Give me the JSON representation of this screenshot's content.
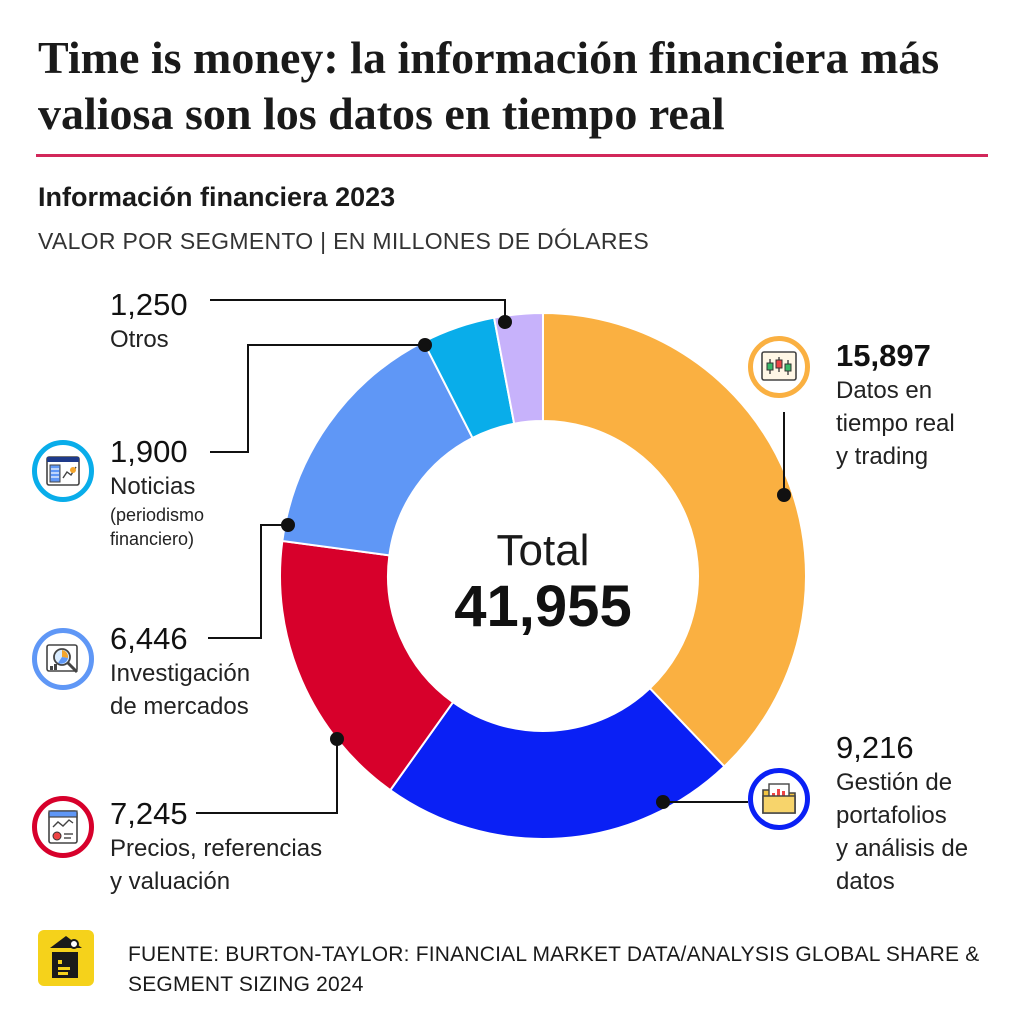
{
  "header": {
    "headline": "Time is money: la información financiera más valiosa son los datos en tiempo real",
    "accent_color": "#d2275a"
  },
  "chart_data": {
    "type": "pie",
    "title": "Información financiera 2023",
    "subtitle": "VALOR POR SEGMENTO | EN MILLONES DE DÓLARES",
    "center_label": "Total",
    "center_value": "41,955",
    "categories": [
      "Datos en tiempo real y trading",
      "Gestión de portafolios y análisis de datos",
      "Precios, referencias y valuación",
      "Investigación de mercados",
      "Noticias (periodismo financiero)",
      "Otros"
    ],
    "values": [
      15897,
      9216,
      7245,
      6446,
      1900,
      1250
    ],
    "colors": [
      "#fab041",
      "#0a20f5",
      "#d7002b",
      "#5f97f6",
      "#09adea",
      "#c7b2fb"
    ],
    "labels": [
      {
        "value": "15,897",
        "lines": [
          "Datos en",
          "tiempo real",
          "y trading"
        ],
        "note": [],
        "icon": "trading-chart-icon"
      },
      {
        "value": "9,216",
        "lines": [
          "Gestión de",
          "portafolios",
          "y análisis de",
          "datos"
        ],
        "note": [],
        "icon": "portfolio-folder-icon"
      },
      {
        "value": "7,245",
        "lines": [
          "Precios, referencias",
          "y valuación"
        ],
        "note": [],
        "icon": "price-report-icon"
      },
      {
        "value": "6,446",
        "lines": [
          "Investigación",
          "de mercados"
        ],
        "note": [],
        "icon": "market-research-icon"
      },
      {
        "value": "1,900",
        "lines": [
          "Noticias"
        ],
        "note": [
          "(periodismo",
          "financiero)"
        ],
        "icon": "news-dashboard-icon"
      },
      {
        "value": "1,250",
        "lines": [
          "Otros"
        ],
        "note": [],
        "icon": ""
      }
    ]
  },
  "source": {
    "text": "FUENTE: BURTON-TAYLOR: FINANCIAL MARKET DATA/ANALYSIS GLOBAL SHARE & SEGMENT SIZING 2024"
  }
}
